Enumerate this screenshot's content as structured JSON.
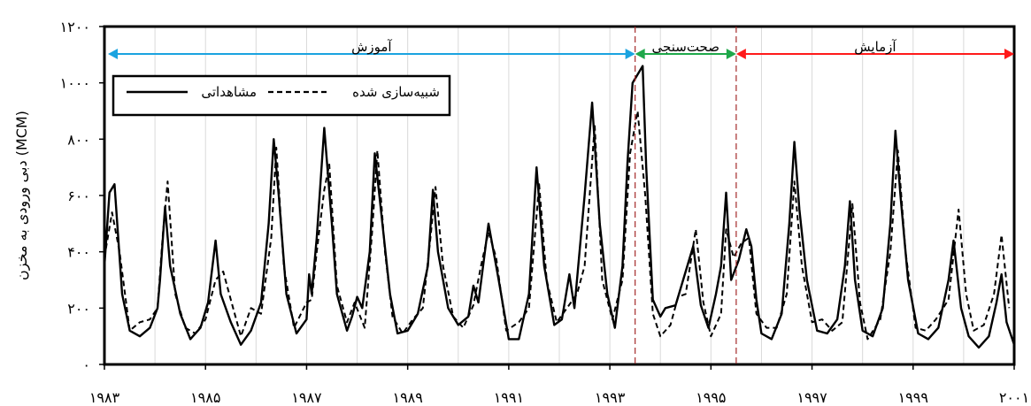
{
  "chart_data": {
    "type": "line",
    "title": "",
    "xlabel": "",
    "ylabel": "دبی ورودی به مخزن (MCM)",
    "xlim": [
      1983,
      2001
    ],
    "ylim": [
      0,
      1200
    ],
    "grid": "vertical",
    "x_ticks": [
      1983,
      1985,
      1987,
      1989,
      1991,
      1993,
      1995,
      1997,
      1999,
      2001
    ],
    "x_tick_labels": [
      "۱۹۸۳",
      "۱۹۸۵",
      "۱۹۸۷",
      "۱۹۸۹",
      "۱۹۹۱",
      "۱۹۹۳",
      "۱۹۹۵",
      "۱۹۹۷",
      "۱۹۹۹",
      "۲۰۰۱"
    ],
    "y_ticks": [
      0,
      200,
      400,
      600,
      800,
      1000,
      1200
    ],
    "y_tick_labels": [
      "۰",
      "۲۰۰",
      "۴۰۰",
      "۶۰۰",
      "۸۰۰",
      "۱۰۰۰",
      "۱۲۰۰"
    ],
    "legend_position": "top-left",
    "phases": [
      {
        "label": "آموزش",
        "start": 1983,
        "end": 1993.5,
        "color": "#1aa3e0"
      },
      {
        "label": "صحت‌سنجی",
        "start": 1993.5,
        "end": 1995.5,
        "color": "#1fa84a"
      },
      {
        "label": "آزمایش",
        "start": 1995.5,
        "end": 2001,
        "color": "#ff1a1a"
      }
    ],
    "divider_color": "#a52a2a",
    "series": [
      {
        "name": "مشاهداتی",
        "style": "solid",
        "points": [
          [
            1983.0,
            350
          ],
          [
            1983.1,
            610
          ],
          [
            1983.2,
            640
          ],
          [
            1983.35,
            250
          ],
          [
            1983.5,
            120
          ],
          [
            1983.7,
            100
          ],
          [
            1983.9,
            130
          ],
          [
            1984.05,
            200
          ],
          [
            1984.1,
            300
          ],
          [
            1984.2,
            560
          ],
          [
            1984.3,
            350
          ],
          [
            1984.5,
            180
          ],
          [
            1984.7,
            90
          ],
          [
            1984.9,
            130
          ],
          [
            1985.05,
            220
          ],
          [
            1985.2,
            440
          ],
          [
            1985.3,
            250
          ],
          [
            1985.5,
            150
          ],
          [
            1985.7,
            70
          ],
          [
            1985.9,
            120
          ],
          [
            1986.1,
            220
          ],
          [
            1986.25,
            500
          ],
          [
            1986.35,
            800
          ],
          [
            1986.45,
            600
          ],
          [
            1986.6,
            250
          ],
          [
            1986.8,
            110
          ],
          [
            1987.0,
            160
          ],
          [
            1987.05,
            320
          ],
          [
            1987.1,
            250
          ],
          [
            1987.2,
            450
          ],
          [
            1987.35,
            840
          ],
          [
            1987.5,
            500
          ],
          [
            1987.6,
            250
          ],
          [
            1987.8,
            120
          ],
          [
            1987.9,
            170
          ],
          [
            1988.0,
            240
          ],
          [
            1988.1,
            200
          ],
          [
            1988.25,
            400
          ],
          [
            1988.35,
            750
          ],
          [
            1988.5,
            500
          ],
          [
            1988.65,
            250
          ],
          [
            1988.8,
            110
          ],
          [
            1989.0,
            120
          ],
          [
            1989.2,
            180
          ],
          [
            1989.4,
            350
          ],
          [
            1989.5,
            620
          ],
          [
            1989.6,
            400
          ],
          [
            1989.8,
            200
          ],
          [
            1990.0,
            140
          ],
          [
            1990.2,
            170
          ],
          [
            1990.3,
            280
          ],
          [
            1990.4,
            220
          ],
          [
            1990.6,
            500
          ],
          [
            1990.8,
            300
          ],
          [
            1991.0,
            90
          ],
          [
            1991.2,
            90
          ],
          [
            1991.4,
            250
          ],
          [
            1991.55,
            700
          ],
          [
            1991.7,
            350
          ],
          [
            1991.9,
            140
          ],
          [
            1992.05,
            160
          ],
          [
            1992.2,
            320
          ],
          [
            1992.3,
            200
          ],
          [
            1992.5,
            600
          ],
          [
            1992.65,
            930
          ],
          [
            1992.8,
            500
          ],
          [
            1992.95,
            250
          ],
          [
            1993.1,
            130
          ],
          [
            1993.25,
            350
          ],
          [
            1993.35,
            720
          ],
          [
            1993.45,
            1000
          ],
          [
            1993.65,
            1060
          ],
          [
            1993.72,
            700
          ],
          [
            1993.85,
            230
          ],
          [
            1994.0,
            170
          ],
          [
            1994.1,
            200
          ],
          [
            1994.3,
            210
          ],
          [
            1994.5,
            330
          ],
          [
            1994.65,
            420
          ],
          [
            1994.8,
            210
          ],
          [
            1994.95,
            130
          ],
          [
            1995.1,
            250
          ],
          [
            1995.2,
            350
          ],
          [
            1995.3,
            610
          ],
          [
            1995.4,
            300
          ],
          [
            1995.55,
            370
          ],
          [
            1995.7,
            480
          ],
          [
            1995.8,
            420
          ],
          [
            1995.9,
            230
          ],
          [
            1996.0,
            110
          ],
          [
            1996.2,
            90
          ],
          [
            1996.4,
            180
          ],
          [
            1996.55,
            500
          ],
          [
            1996.65,
            790
          ],
          [
            1996.75,
            550
          ],
          [
            1996.9,
            300
          ],
          [
            1997.1,
            120
          ],
          [
            1997.3,
            110
          ],
          [
            1997.5,
            160
          ],
          [
            1997.65,
            350
          ],
          [
            1997.75,
            580
          ],
          [
            1997.85,
            300
          ],
          [
            1998.0,
            120
          ],
          [
            1998.2,
            100
          ],
          [
            1998.4,
            200
          ],
          [
            1998.55,
            500
          ],
          [
            1998.65,
            830
          ],
          [
            1998.75,
            600
          ],
          [
            1998.9,
            300
          ],
          [
            1999.1,
            110
          ],
          [
            1999.3,
            90
          ],
          [
            1999.5,
            130
          ],
          [
            1999.7,
            300
          ],
          [
            1999.8,
            440
          ],
          [
            1999.95,
            200
          ],
          [
            2000.1,
            100
          ],
          [
            2000.3,
            60
          ],
          [
            2000.5,
            100
          ],
          [
            2000.65,
            220
          ],
          [
            2000.75,
            320
          ],
          [
            2000.85,
            150
          ],
          [
            2001.0,
            70
          ],
          [
            2001.2,
            60
          ],
          [
            2001.4,
            100
          ]
        ]
      },
      {
        "name": "شبیه‌سازی شده",
        "style": "dashed",
        "points": [
          [
            1983.0,
            380
          ],
          [
            1983.15,
            540
          ],
          [
            1983.3,
            400
          ],
          [
            1983.5,
            120
          ],
          [
            1983.7,
            150
          ],
          [
            1983.9,
            160
          ],
          [
            1984.05,
            200
          ],
          [
            1984.15,
            450
          ],
          [
            1984.25,
            650
          ],
          [
            1984.4,
            250
          ],
          [
            1984.6,
            130
          ],
          [
            1984.8,
            110
          ],
          [
            1985.0,
            160
          ],
          [
            1985.2,
            300
          ],
          [
            1985.35,
            330
          ],
          [
            1985.5,
            230
          ],
          [
            1985.7,
            100
          ],
          [
            1985.9,
            200
          ],
          [
            1986.1,
            180
          ],
          [
            1986.3,
            450
          ],
          [
            1986.4,
            770
          ],
          [
            1986.55,
            350
          ],
          [
            1986.75,
            130
          ],
          [
            1987.0,
            220
          ],
          [
            1987.1,
            230
          ],
          [
            1987.2,
            400
          ],
          [
            1987.35,
            620
          ],
          [
            1987.45,
            710
          ],
          [
            1987.6,
            280
          ],
          [
            1987.8,
            150
          ],
          [
            1987.95,
            220
          ],
          [
            1988.15,
            130
          ],
          [
            1988.3,
            480
          ],
          [
            1988.4,
            760
          ],
          [
            1988.55,
            400
          ],
          [
            1988.7,
            170
          ],
          [
            1988.9,
            110
          ],
          [
            1989.1,
            160
          ],
          [
            1989.3,
            200
          ],
          [
            1989.45,
            450
          ],
          [
            1989.55,
            630
          ],
          [
            1989.7,
            350
          ],
          [
            1989.9,
            170
          ],
          [
            1990.1,
            130
          ],
          [
            1990.3,
            210
          ],
          [
            1990.45,
            350
          ],
          [
            1990.6,
            470
          ],
          [
            1990.75,
            380
          ],
          [
            1990.95,
            120
          ],
          [
            1991.2,
            150
          ],
          [
            1991.4,
            200
          ],
          [
            1991.6,
            640
          ],
          [
            1991.75,
            300
          ],
          [
            1991.95,
            150
          ],
          [
            1992.15,
            200
          ],
          [
            1992.35,
            250
          ],
          [
            1992.5,
            350
          ],
          [
            1992.7,
            850
          ],
          [
            1992.85,
            300
          ],
          [
            1993.05,
            160
          ],
          [
            1993.25,
            300
          ],
          [
            1993.4,
            750
          ],
          [
            1993.55,
            900
          ],
          [
            1993.7,
            600
          ],
          [
            1993.85,
            180
          ],
          [
            1994.0,
            100
          ],
          [
            1994.2,
            140
          ],
          [
            1994.35,
            240
          ],
          [
            1994.5,
            250
          ],
          [
            1994.7,
            480
          ],
          [
            1994.85,
            220
          ],
          [
            1995.0,
            100
          ],
          [
            1995.2,
            180
          ],
          [
            1995.3,
            480
          ],
          [
            1995.45,
            380
          ],
          [
            1995.6,
            430
          ],
          [
            1995.75,
            450
          ],
          [
            1995.9,
            180
          ],
          [
            1996.1,
            130
          ],
          [
            1996.3,
            130
          ],
          [
            1996.5,
            250
          ],
          [
            1996.65,
            650
          ],
          [
            1996.8,
            350
          ],
          [
            1997.0,
            150
          ],
          [
            1997.2,
            160
          ],
          [
            1997.4,
            120
          ],
          [
            1997.6,
            150
          ],
          [
            1997.8,
            570
          ],
          [
            1997.95,
            220
          ],
          [
            1998.1,
            90
          ],
          [
            1998.35,
            160
          ],
          [
            1998.55,
            400
          ],
          [
            1998.7,
            760
          ],
          [
            1998.85,
            400
          ],
          [
            1999.05,
            130
          ],
          [
            1999.25,
            120
          ],
          [
            1999.45,
            160
          ],
          [
            1999.7,
            230
          ],
          [
            1999.9,
            550
          ],
          [
            2000.05,
            250
          ],
          [
            2000.2,
            120
          ],
          [
            2000.4,
            140
          ],
          [
            2000.6,
            250
          ],
          [
            2000.75,
            460
          ],
          [
            2000.9,
            200
          ],
          [
            2001.1,
            110
          ],
          [
            2001.3,
            150
          ]
        ]
      }
    ]
  }
}
